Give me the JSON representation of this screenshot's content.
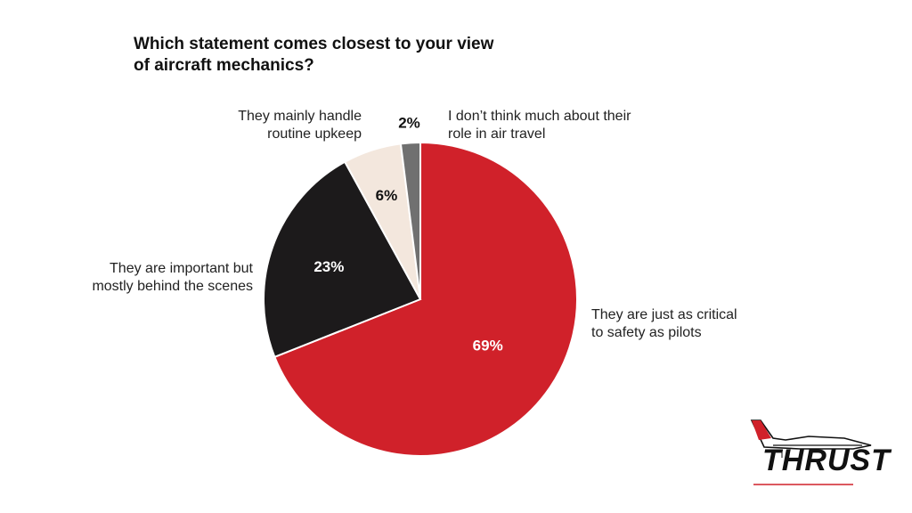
{
  "chart_data": {
    "type": "pie",
    "title_lines": [
      "Which statement comes closest to your view",
      "of aircraft mechanics?"
    ],
    "slices": [
      {
        "label_lines": [
          "They are just as critical",
          "to safety as pilots"
        ],
        "value": 69,
        "display": "69%",
        "color": "#d0212a",
        "text_color": "#ffffff"
      },
      {
        "label_lines": [
          "They are important but",
          "mostly behind the scenes"
        ],
        "value": 23,
        "display": "23%",
        "color": "#1c1a1b",
        "text_color": "#ffffff"
      },
      {
        "label_lines": [
          "They mainly handle",
          "routine upkeep"
        ],
        "value": 6,
        "display": "6%",
        "color": "#f3e7dd",
        "text_color": "#111111"
      },
      {
        "label_lines": [
          "I don’t think much about their",
          "role in air travel"
        ],
        "value": 2,
        "display": "2%",
        "color": "#707070",
        "text_color": "#111111"
      }
    ],
    "start_angle": "12 o'clock",
    "direction": "clockwise",
    "legend": "none"
  },
  "logo": {
    "text": "THRUST",
    "accent_color": "#d0212a"
  }
}
